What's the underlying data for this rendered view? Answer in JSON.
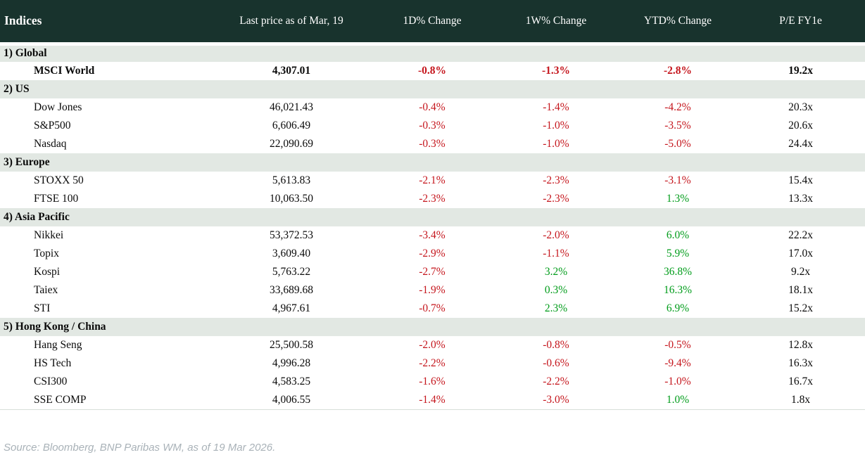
{
  "header": {
    "title": "Indices",
    "columns": [
      "Last price as of Mar, 19",
      "1D% Change",
      "1W% Change",
      "YTD% Change",
      "P/E FY1e"
    ]
  },
  "sections": [
    {
      "label": "1) Global",
      "rows": [
        {
          "name": "MSCI World",
          "price": "4,307.01",
          "chg_1d": "-0.8%",
          "chg_1w": "-1.3%",
          "chg_ytd": "-2.8%",
          "pe": "19.2x"
        }
      ]
    },
    {
      "label": "2) US",
      "rows": [
        {
          "name": "Dow Jones",
          "price": "46,021.43",
          "chg_1d": "-0.4%",
          "chg_1w": "-1.4%",
          "chg_ytd": "-4.2%",
          "pe": "20.3x"
        },
        {
          "name": "S&P500",
          "price": "6,606.49",
          "chg_1d": "-0.3%",
          "chg_1w": "-1.0%",
          "chg_ytd": "-3.5%",
          "pe": "20.6x"
        },
        {
          "name": "Nasdaq",
          "price": "22,090.69",
          "chg_1d": "-0.3%",
          "chg_1w": "-1.0%",
          "chg_ytd": "-5.0%",
          "pe": "24.4x"
        }
      ]
    },
    {
      "label": "3) Europe",
      "rows": [
        {
          "name": "STOXX 50",
          "price": "5,613.83",
          "chg_1d": "-2.1%",
          "chg_1w": "-2.3%",
          "chg_ytd": "-3.1%",
          "pe": "15.4x"
        },
        {
          "name": "FTSE 100",
          "price": "10,063.50",
          "chg_1d": "-2.3%",
          "chg_1w": "-2.3%",
          "chg_ytd": "1.3%",
          "pe": "13.3x"
        }
      ]
    },
    {
      "label": "4) Asia Pacific",
      "rows": [
        {
          "name": "Nikkei",
          "price": "53,372.53",
          "chg_1d": "-3.4%",
          "chg_1w": "-2.0%",
          "chg_ytd": "6.0%",
          "pe": "22.2x"
        },
        {
          "name": "Topix",
          "price": "3,609.40",
          "chg_1d": "-2.9%",
          "chg_1w": "-1.1%",
          "chg_ytd": "5.9%",
          "pe": "17.0x"
        },
        {
          "name": "Kospi",
          "price": "5,763.22",
          "chg_1d": "-2.7%",
          "chg_1w": "3.2%",
          "chg_ytd": "36.8%",
          "pe": "9.2x"
        },
        {
          "name": "Taiex",
          "price": "33,689.68",
          "chg_1d": "-1.9%",
          "chg_1w": "0.3%",
          "chg_ytd": "16.3%",
          "pe": "18.1x"
        },
        {
          "name": "STI",
          "price": "4,967.61",
          "chg_1d": "-0.7%",
          "chg_1w": "2.3%",
          "chg_ytd": "6.9%",
          "pe": "15.2x"
        }
      ]
    },
    {
      "label": "5) Hong Kong / China",
      "rows": [
        {
          "name": "Hang Seng",
          "price": "25,500.58",
          "chg_1d": "-2.0%",
          "chg_1w": "-0.8%",
          "chg_ytd": "-0.5%",
          "pe": "12.8x"
        },
        {
          "name": "HS Tech",
          "price": "4,996.28",
          "chg_1d": "-2.2%",
          "chg_1w": "-0.6%",
          "chg_ytd": "-9.4%",
          "pe": "16.3x"
        },
        {
          "name": "CSI300",
          "price": "4,583.25",
          "chg_1d": "-1.6%",
          "chg_1w": "-2.2%",
          "chg_ytd": "-1.0%",
          "pe": "16.7x"
        },
        {
          "name": "SSE COMP",
          "price": "4,006.55",
          "chg_1d": "-1.4%",
          "chg_1w": "-3.0%",
          "chg_ytd": "1.0%",
          "pe": "1.8x"
        }
      ]
    }
  ],
  "footer": {
    "source": "Source: Bloomberg, BNP Paribas WM, as of 19 Mar 2026."
  },
  "colors": {
    "negative": "#c5161d",
    "positive": "#009c1a",
    "header_bg": "#18332d",
    "section_bg": "#e2e8e3"
  }
}
